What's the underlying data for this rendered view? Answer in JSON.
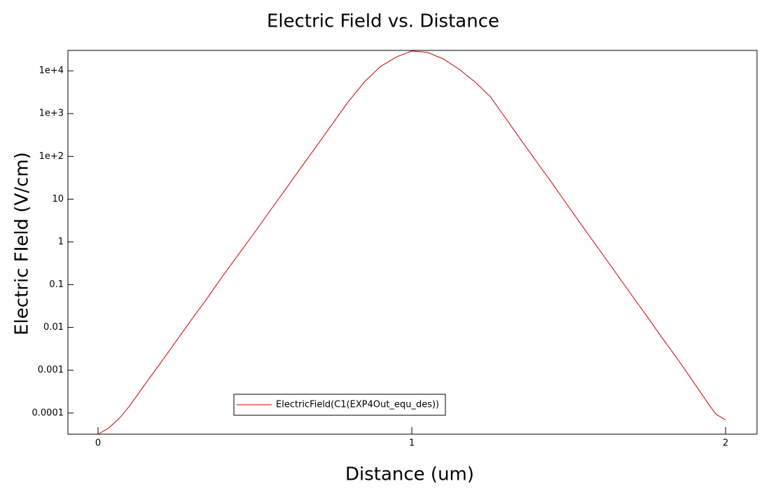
{
  "chart_data": {
    "type": "line",
    "title": "Electric Field vs. Distance",
    "x_label": "Distance (um)",
    "y_label": "Electric FIeld (V/cm)",
    "y_scale": "log",
    "legend": "lower center",
    "xlim": [
      -0.096,
      2.1
    ],
    "xticks": [
      0,
      1,
      2
    ],
    "ylim": [
      3.2e-05,
      30000
    ],
    "yticks": [
      0.0001,
      0.001,
      0.01,
      0.1,
      1,
      10,
      {
        "value": 100,
        "label": "1e+2"
      },
      {
        "value": 1000,
        "label": "1e+3"
      },
      {
        "value": 10000,
        "label": "1e+4"
      }
    ],
    "x": [
      0,
      0.033,
      0.067,
      0.1,
      0.15,
      0.2,
      0.25,
      0.3,
      0.35,
      0.4,
      0.45,
      0.5,
      0.55,
      0.6,
      0.65,
      0.7,
      0.75,
      0.8,
      0.85,
      0.9,
      0.95,
      1.0,
      1.05,
      1.1,
      1.15,
      1.2,
      1.25,
      1.3,
      1.35,
      1.4,
      1.45,
      1.5,
      1.55,
      1.6,
      1.65,
      1.7,
      1.75,
      1.8,
      1.85,
      1.9,
      1.95,
      1.97,
      2.0
    ],
    "series": [
      {
        "name": "ElectricField(C1(EXP4Out_equ_des))",
        "color": "#cc0000",
        "values": [
          3.2e-05,
          4.4e-05,
          7.4e-05,
          0.000145,
          0.00047,
          0.0015,
          0.0049,
          0.016,
          0.051,
          0.17,
          0.54,
          1.7,
          5.6,
          18,
          59,
          190,
          620,
          2000,
          5600,
          12600,
          21000,
          29000,
          27000,
          19000,
          11000,
          5600,
          2500,
          760,
          230,
          71,
          22,
          6.6,
          2,
          0.62,
          0.19,
          0.058,
          0.018,
          0.0054,
          0.0017,
          0.0005,
          0.000145,
          9.3e-05,
          6.9e-05
        ]
      }
    ]
  }
}
